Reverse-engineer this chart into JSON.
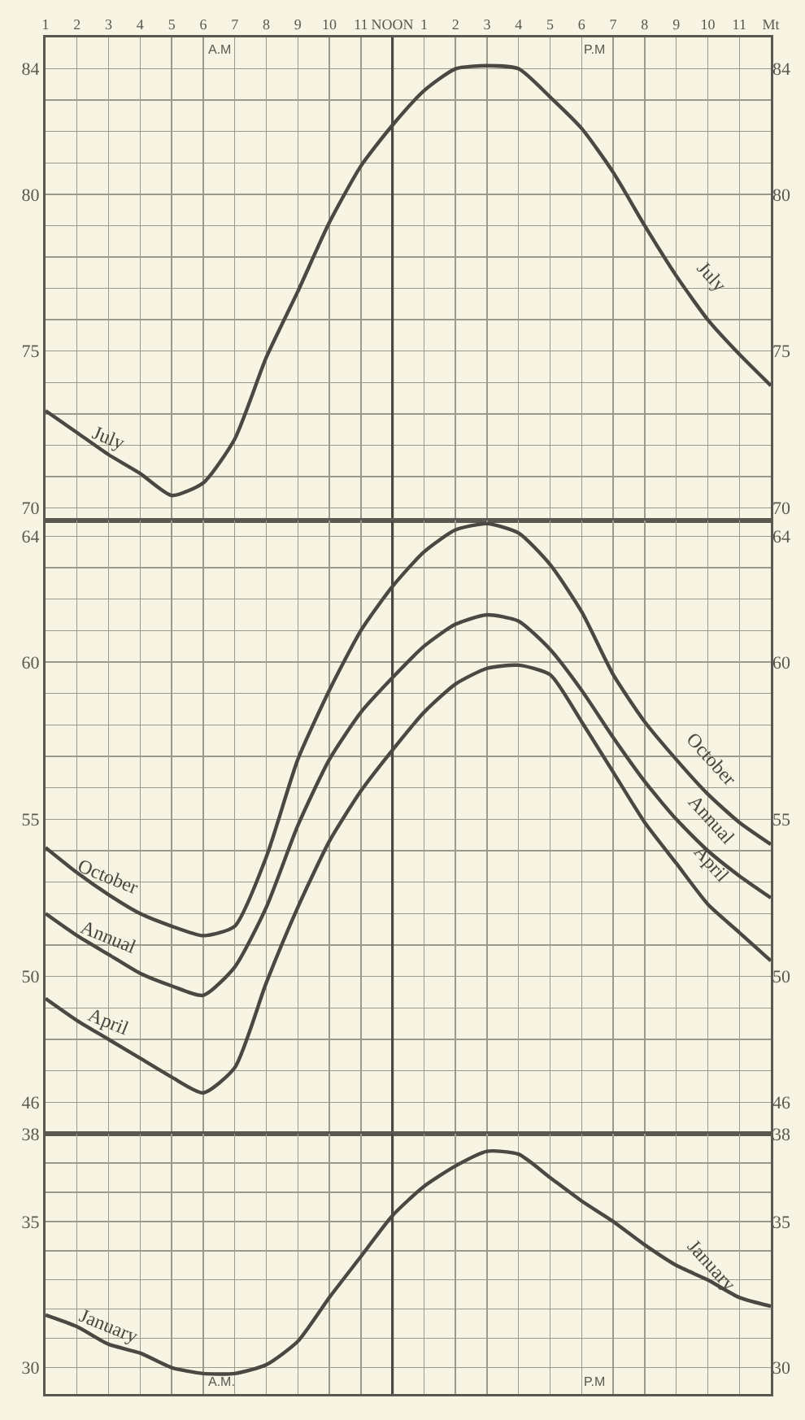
{
  "chart_data": [
    {
      "type": "line",
      "categories": [
        "1",
        "2",
        "3",
        "4",
        "5",
        "6",
        "7",
        "8",
        "9",
        "10",
        "11",
        "NOON",
        "1",
        "2",
        "3",
        "4",
        "5",
        "6",
        "7",
        "8",
        "9",
        "10",
        "11",
        "Mt"
      ],
      "series": [
        {
          "name": "July",
          "color": "#4a4842",
          "values": [
            73.1,
            72.4,
            71.7,
            71.1,
            70.4,
            70.8,
            72.2,
            74.8,
            76.9,
            79.1,
            80.9,
            82.2,
            83.3,
            84.0,
            84.1,
            84.0,
            83.1,
            82.1,
            80.7,
            79.0,
            77.4,
            76.0,
            74.9,
            73.9
          ]
        }
      ],
      "ylim": [
        69.6,
        85
      ],
      "yticks": [
        70,
        75,
        80,
        84
      ],
      "y2lim": [
        69.6,
        85
      ],
      "y2ticks": [
        70,
        75,
        80,
        84
      ],
      "ref_lines": [
        {
          "axis": "x",
          "value": "NOON",
          "color": "#4a4842"
        }
      ],
      "annotations": [
        "A.M",
        "P.M"
      ],
      "grid": true,
      "legend": false,
      "marker": "none",
      "line_style": "solid"
    },
    {
      "type": "line",
      "categories": [
        "1",
        "2",
        "3",
        "4",
        "5",
        "6",
        "7",
        "8",
        "9",
        "10",
        "11",
        "NOON",
        "1",
        "2",
        "3",
        "4",
        "5",
        "6",
        "7",
        "8",
        "9",
        "10",
        "11",
        "Mt"
      ],
      "series": [
        {
          "name": "October",
          "color": "#4a4842",
          "values": [
            54.1,
            53.3,
            52.6,
            52.0,
            51.6,
            51.3,
            51.6,
            53.8,
            56.9,
            59.1,
            61.0,
            62.4,
            63.5,
            64.2,
            64.4,
            64.1,
            63.1,
            61.6,
            59.6,
            58.1,
            56.9,
            55.8,
            54.9,
            54.2
          ]
        },
        {
          "name": "Annual",
          "color": "#4a4842",
          "values": [
            52.0,
            51.3,
            50.7,
            50.1,
            49.7,
            49.4,
            50.3,
            52.2,
            54.8,
            56.9,
            58.4,
            59.5,
            60.5,
            61.2,
            61.5,
            61.3,
            60.4,
            59.1,
            57.6,
            56.2,
            55.0,
            54.0,
            53.2,
            52.5
          ]
        },
        {
          "name": "April",
          "color": "#4a4842",
          "values": [
            49.3,
            48.6,
            48.0,
            47.4,
            46.8,
            46.3,
            47.1,
            49.8,
            52.2,
            54.3,
            55.9,
            57.2,
            58.4,
            59.3,
            59.8,
            59.9,
            59.6,
            58.1,
            56.5,
            54.9,
            53.6,
            52.3,
            51.4,
            50.5
          ]
        }
      ],
      "ylim": [
        45,
        64.5
      ],
      "yticks": [
        46,
        50,
        55,
        60,
        64
      ],
      "y2lim": [
        45,
        64.5
      ],
      "y2ticks": [
        46,
        50,
        55,
        60,
        64
      ],
      "ref_lines": [
        {
          "axis": "x",
          "value": "NOON",
          "color": "#4a4842"
        }
      ],
      "tick_labels": "y",
      "grid": true,
      "legend": false,
      "marker": "none",
      "line_style": "solid"
    },
    {
      "type": "line",
      "categories": [
        "1",
        "2",
        "3",
        "4",
        "5",
        "6",
        "7",
        "8",
        "9",
        "10",
        "11",
        "NOON",
        "1",
        "2",
        "3",
        "4",
        "5",
        "6",
        "7",
        "8",
        "9",
        "10",
        "11",
        "Mt"
      ],
      "series": [
        {
          "name": "January",
          "color": "#4a4842",
          "values": [
            31.8,
            31.4,
            30.8,
            30.5,
            30.0,
            29.8,
            29.8,
            30.1,
            30.9,
            32.4,
            33.8,
            35.2,
            36.2,
            36.9,
            37.4,
            37.3,
            36.5,
            35.7,
            35.0,
            34.2,
            33.5,
            33.0,
            32.4,
            32.1
          ]
        }
      ],
      "ylim": [
        29.1,
        38
      ],
      "yticks": [
        30,
        35,
        38
      ],
      "y2lim": [
        29.1,
        38
      ],
      "y2ticks": [
        30,
        35,
        38
      ],
      "ref_lines": [
        {
          "axis": "x",
          "value": "NOON",
          "color": "#4a4842"
        }
      ],
      "annotations": [
        "A.M.",
        "P.M"
      ],
      "tick_labels": "y",
      "grid": true,
      "legend": false,
      "marker": "none",
      "line_style": "solid"
    }
  ]
}
